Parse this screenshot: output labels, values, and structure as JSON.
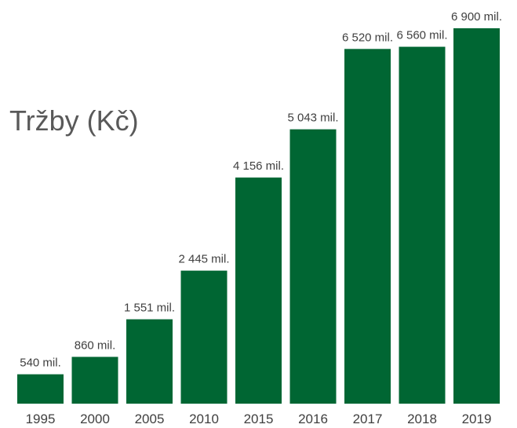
{
  "chart_data": {
    "type": "bar",
    "title": "Tržby (Kč)",
    "categories": [
      "1995",
      "2000",
      "2005",
      "2010",
      "2015",
      "2016",
      "2017",
      "2018",
      "2019"
    ],
    "values": [
      540,
      860,
      1551,
      2445,
      4156,
      5043,
      6520,
      6560,
      6900
    ],
    "data_labels": [
      "540 mil.",
      "860 mil.",
      "1 551 mil.",
      "2 445 mil.",
      "4 156 mil.",
      "5 043 mil.",
      "6 520 mil.",
      "6 560 mil.",
      "6 900 mil."
    ],
    "xlabel": "",
    "ylabel": "",
    "ylim": [
      0,
      6900
    ],
    "grid": false,
    "legend": "none",
    "bar_color": "#006633"
  }
}
